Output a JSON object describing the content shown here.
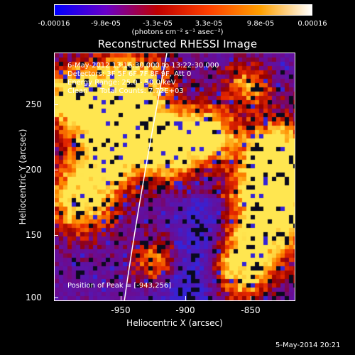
{
  "colorbar": {
    "tick_labels": [
      "-0.00016",
      "-9.8e-05",
      "-3.3e-05",
      "3.3e-05",
      "9.8e-05",
      "0.00016"
    ],
    "units": "(photons cm⁻² s⁻¹ asec⁻²)",
    "colors": [
      "#0000ff",
      "#6a00c8",
      "#c00000",
      "#ff4000",
      "#ffa000",
      "#ffffff"
    ]
  },
  "plot": {
    "title": "Reconstructed RHESSI Image",
    "info": {
      "time_range": "6-May-2012 13:16:30.000 to 13:22:30.000",
      "detectors": "Detectors: 3F 5F 6F 7F 8F 9F, Att 0",
      "energy_range": "Energy Range: 25.0 - 50.0 keV",
      "algorithm": "Clean",
      "total_counts": "Total Counts: 7.72E+03"
    },
    "peak_position": "Position of Peak = [-943,256]"
  },
  "axes": {
    "x_title": "Heliocentric X (arcsec)",
    "y_title": "Heliocentric Y (arcsec)",
    "x_ticks": [
      "-950",
      "-900",
      "-850"
    ],
    "y_ticks": [
      "250",
      "200",
      "150",
      "100"
    ],
    "x_range": [
      -998,
      -812
    ],
    "y_range": [
      101,
      289
    ]
  },
  "timestamp": "5-May-2014 20:21"
}
